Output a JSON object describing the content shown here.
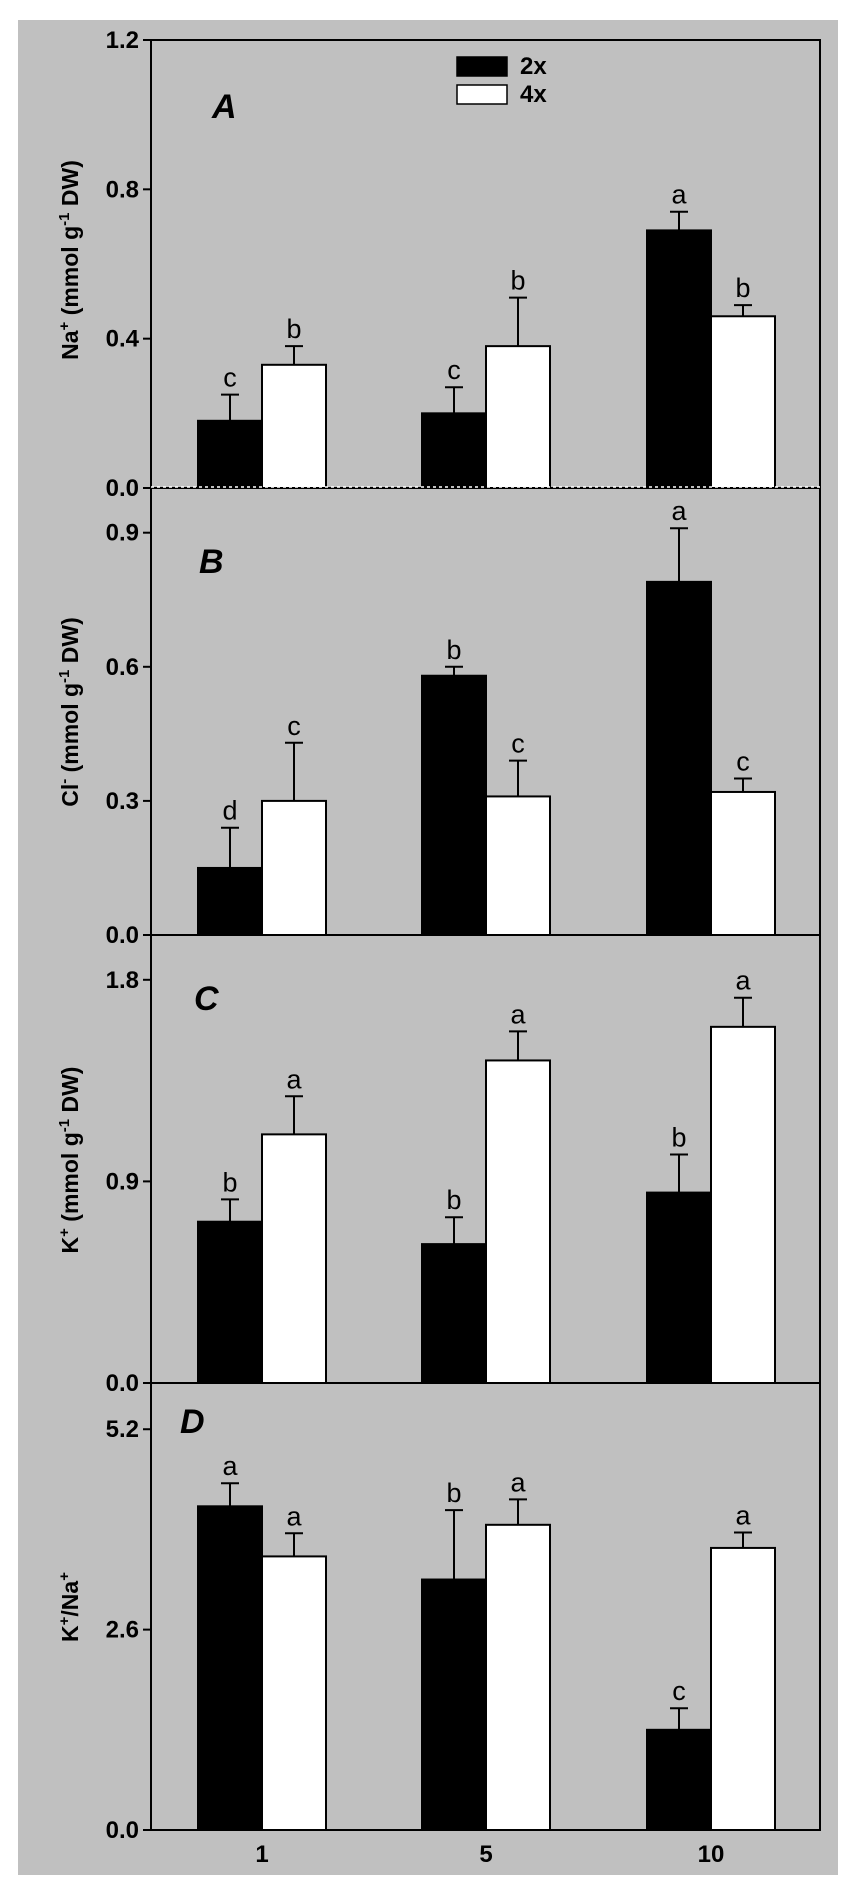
{
  "colors": {
    "background": "#c0c0c0",
    "series_2x": "#000000",
    "series_4x": "#ffffff"
  },
  "legend": {
    "entries": [
      "2x",
      "4x"
    ]
  },
  "chart_data": [
    {
      "type": "bar",
      "panel_label": "A",
      "ylabel": {
        "ion": "Na",
        "charge": "+",
        "unit_pre": " (mmol g",
        "unit_exp": "-1",
        "unit_post": " DW)"
      },
      "categories": [
        "1",
        "5",
        "10"
      ],
      "ylim": [
        0,
        1.2
      ],
      "yticks": [
        "0.0",
        "0.4",
        "0.8",
        "1.2"
      ],
      "series": [
        {
          "name": "2x",
          "values": [
            0.18,
            0.2,
            0.69
          ],
          "errors": [
            0.07,
            0.07,
            0.05
          ],
          "letters": [
            "c",
            "c",
            "a"
          ]
        },
        {
          "name": "4x",
          "values": [
            0.33,
            0.38,
            0.46
          ],
          "errors": [
            0.05,
            0.13,
            0.03
          ],
          "letters": [
            "b",
            "b",
            "b"
          ]
        }
      ]
    },
    {
      "type": "bar",
      "panel_label": "B",
      "ylabel": {
        "ion": "Cl",
        "charge": "-",
        "unit_pre": " (mmol g",
        "unit_exp": "-1",
        "unit_post": " DW)"
      },
      "categories": [
        "1",
        "5",
        "10"
      ],
      "ylim": [
        0,
        1.0
      ],
      "yticks": [
        "0.0",
        "0.3",
        "0.6",
        "0.9"
      ],
      "series": [
        {
          "name": "2x",
          "values": [
            0.15,
            0.58,
            0.79
          ],
          "errors": [
            0.09,
            0.02,
            0.12
          ],
          "letters": [
            "d",
            "b",
            "a"
          ]
        },
        {
          "name": "4x",
          "values": [
            0.3,
            0.31,
            0.32
          ],
          "errors": [
            0.13,
            0.08,
            0.03
          ],
          "letters": [
            "c",
            "c",
            "c"
          ]
        }
      ]
    },
    {
      "type": "bar",
      "panel_label": "C",
      "ylabel": {
        "ion": "K",
        "charge": "+",
        "unit_pre": " (mmol g",
        "unit_exp": "-1",
        "unit_post": " DW)"
      },
      "categories": [
        "1",
        "5",
        "10"
      ],
      "ylim": [
        0,
        2.0
      ],
      "yticks": [
        "0.0",
        "0.9",
        "1.8"
      ],
      "series": [
        {
          "name": "2x",
          "values": [
            0.72,
            0.62,
            0.85
          ],
          "errors": [
            0.1,
            0.12,
            0.17
          ],
          "letters": [
            "b",
            "b",
            "b"
          ]
        },
        {
          "name": "4x",
          "values": [
            1.11,
            1.44,
            1.59
          ],
          "errors": [
            0.17,
            0.13,
            0.13
          ],
          "letters": [
            "a",
            "a",
            "a"
          ]
        }
      ]
    },
    {
      "type": "bar",
      "panel_label": "D",
      "ylabel": {
        "ion": "K",
        "charge": "+",
        "unit_pre": "/Na",
        "unit_exp": "+",
        "unit_post": ""
      },
      "categories": [
        "1",
        "5",
        "10"
      ],
      "ylim": [
        0,
        5.8
      ],
      "yticks": [
        "0.0",
        "2.6",
        "5.2"
      ],
      "series": [
        {
          "name": "2x",
          "values": [
            4.2,
            3.25,
            1.3
          ],
          "errors": [
            0.3,
            0.9,
            0.28
          ],
          "letters": [
            "a",
            "b",
            "c"
          ]
        },
        {
          "name": "4x",
          "values": [
            3.55,
            3.96,
            3.66
          ],
          "errors": [
            0.3,
            0.33,
            0.2
          ],
          "letters": [
            "a",
            "a",
            "a"
          ]
        }
      ]
    }
  ]
}
